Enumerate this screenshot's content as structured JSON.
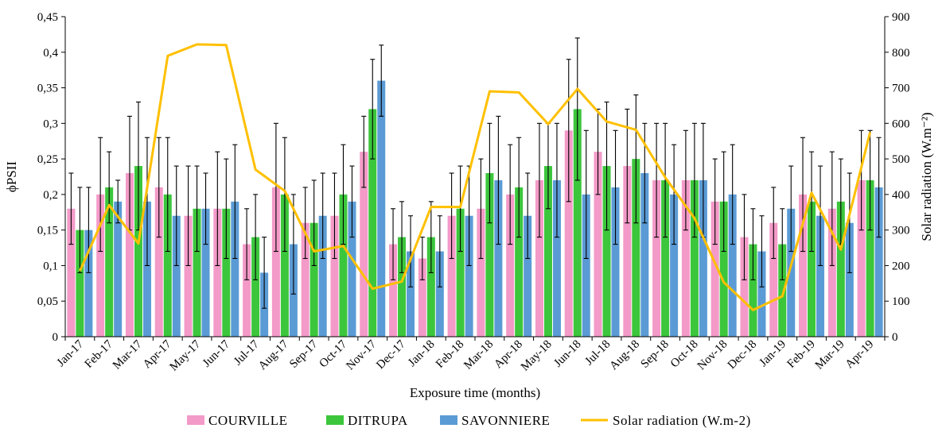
{
  "chart_data": {
    "type": "bar",
    "xlabel": "Exposure time (months)",
    "ylabel": "ϕPSII",
    "y2label": "Solar radiation (W.m⁻²)",
    "ylim": [
      0,
      0.45
    ],
    "y2lim": [
      0,
      900
    ],
    "yticks": [
      "0",
      "0,05",
      "0,1",
      "0,15",
      "0,2",
      "0,25",
      "0,3",
      "0,35",
      "0,4",
      "0,45"
    ],
    "y2ticks": [
      "0",
      "100",
      "200",
      "300",
      "400",
      "500",
      "600",
      "700",
      "800",
      "900"
    ],
    "grid": false,
    "legend_position": "bottom",
    "categories": [
      "Jan-17",
      "Feb-17",
      "Mar-17",
      "Apr-17",
      "May-17",
      "Jun-17",
      "Jul-17",
      "Aug-17",
      "Sep-17",
      "Oct-17",
      "Nov-17",
      "Dec-17",
      "Jan-18",
      "Feb-18",
      "Mar-18",
      "Apr-18",
      "May-18",
      "Jun-18",
      "Jul-18",
      "Aug-18",
      "Sep-18",
      "Oct-18",
      "Nov-18",
      "Dec-18",
      "Jan-19",
      "Feb-19",
      "Mar-19",
      "Apr-19"
    ],
    "series": [
      {
        "name": "COURVILLE",
        "kind": "bar",
        "color": "#f39ac8",
        "values": [
          0.18,
          0.2,
          0.23,
          0.21,
          0.17,
          0.18,
          0.13,
          0.21,
          0.16,
          0.17,
          0.26,
          0.13,
          0.11,
          0.17,
          0.18,
          0.2,
          0.22,
          0.29,
          0.26,
          0.24,
          0.22,
          0.22,
          0.19,
          0.14,
          0.16,
          0.2,
          0.18,
          0.22
        ],
        "errors": [
          0.05,
          0.08,
          0.08,
          0.07,
          0.07,
          0.08,
          0.05,
          0.09,
          0.05,
          0.06,
          0.05,
          0.05,
          0.03,
          0.06,
          0.07,
          0.07,
          0.08,
          0.1,
          0.06,
          0.08,
          0.08,
          0.07,
          0.06,
          0.06,
          0.05,
          0.08,
          0.08,
          0.07
        ]
      },
      {
        "name": "DITRUPA",
        "kind": "bar",
        "color": "#3cc63c",
        "values": [
          0.15,
          0.21,
          0.24,
          0.2,
          0.18,
          0.18,
          0.14,
          0.2,
          0.16,
          0.2,
          0.32,
          0.14,
          0.14,
          0.18,
          0.23,
          0.21,
          0.24,
          0.32,
          0.24,
          0.25,
          0.22,
          0.22,
          0.19,
          0.13,
          0.13,
          0.19,
          0.19,
          0.22
        ],
        "errors": [
          0.06,
          0.05,
          0.09,
          0.08,
          0.06,
          0.07,
          0.06,
          0.08,
          0.06,
          0.07,
          0.07,
          0.05,
          0.05,
          0.06,
          0.07,
          0.07,
          0.06,
          0.1,
          0.09,
          0.09,
          0.08,
          0.08,
          0.07,
          0.05,
          0.05,
          0.07,
          0.06,
          0.07
        ]
      },
      {
        "name": "SAVONNIERE",
        "kind": "bar",
        "color": "#5b9bd5",
        "values": [
          0.15,
          0.19,
          0.19,
          0.17,
          0.18,
          0.19,
          0.09,
          0.13,
          0.17,
          0.19,
          0.36,
          0.12,
          0.12,
          0.17,
          0.22,
          0.17,
          0.22,
          0.2,
          0.21,
          0.23,
          0.2,
          0.22,
          0.2,
          0.12,
          0.18,
          0.17,
          0.16,
          0.21
        ],
        "errors": [
          0.06,
          0.03,
          0.09,
          0.07,
          0.05,
          0.08,
          0.05,
          0.07,
          0.06,
          0.05,
          0.05,
          0.05,
          0.05,
          0.07,
          0.09,
          0.06,
          0.08,
          0.09,
          0.08,
          0.07,
          0.07,
          0.08,
          0.07,
          0.05,
          0.06,
          0.07,
          0.07,
          0.07
        ]
      },
      {
        "name": "Solar radiation (W.m-2)",
        "kind": "line",
        "axis": "y2",
        "color": "#ffc000",
        "values": [
          185,
          370,
          262,
          790,
          822,
          820,
          470,
          410,
          240,
          255,
          135,
          155,
          365,
          365,
          690,
          687,
          598,
          697,
          605,
          582,
          448,
          333,
          153,
          75,
          114,
          405,
          245,
          575
        ]
      }
    ]
  }
}
